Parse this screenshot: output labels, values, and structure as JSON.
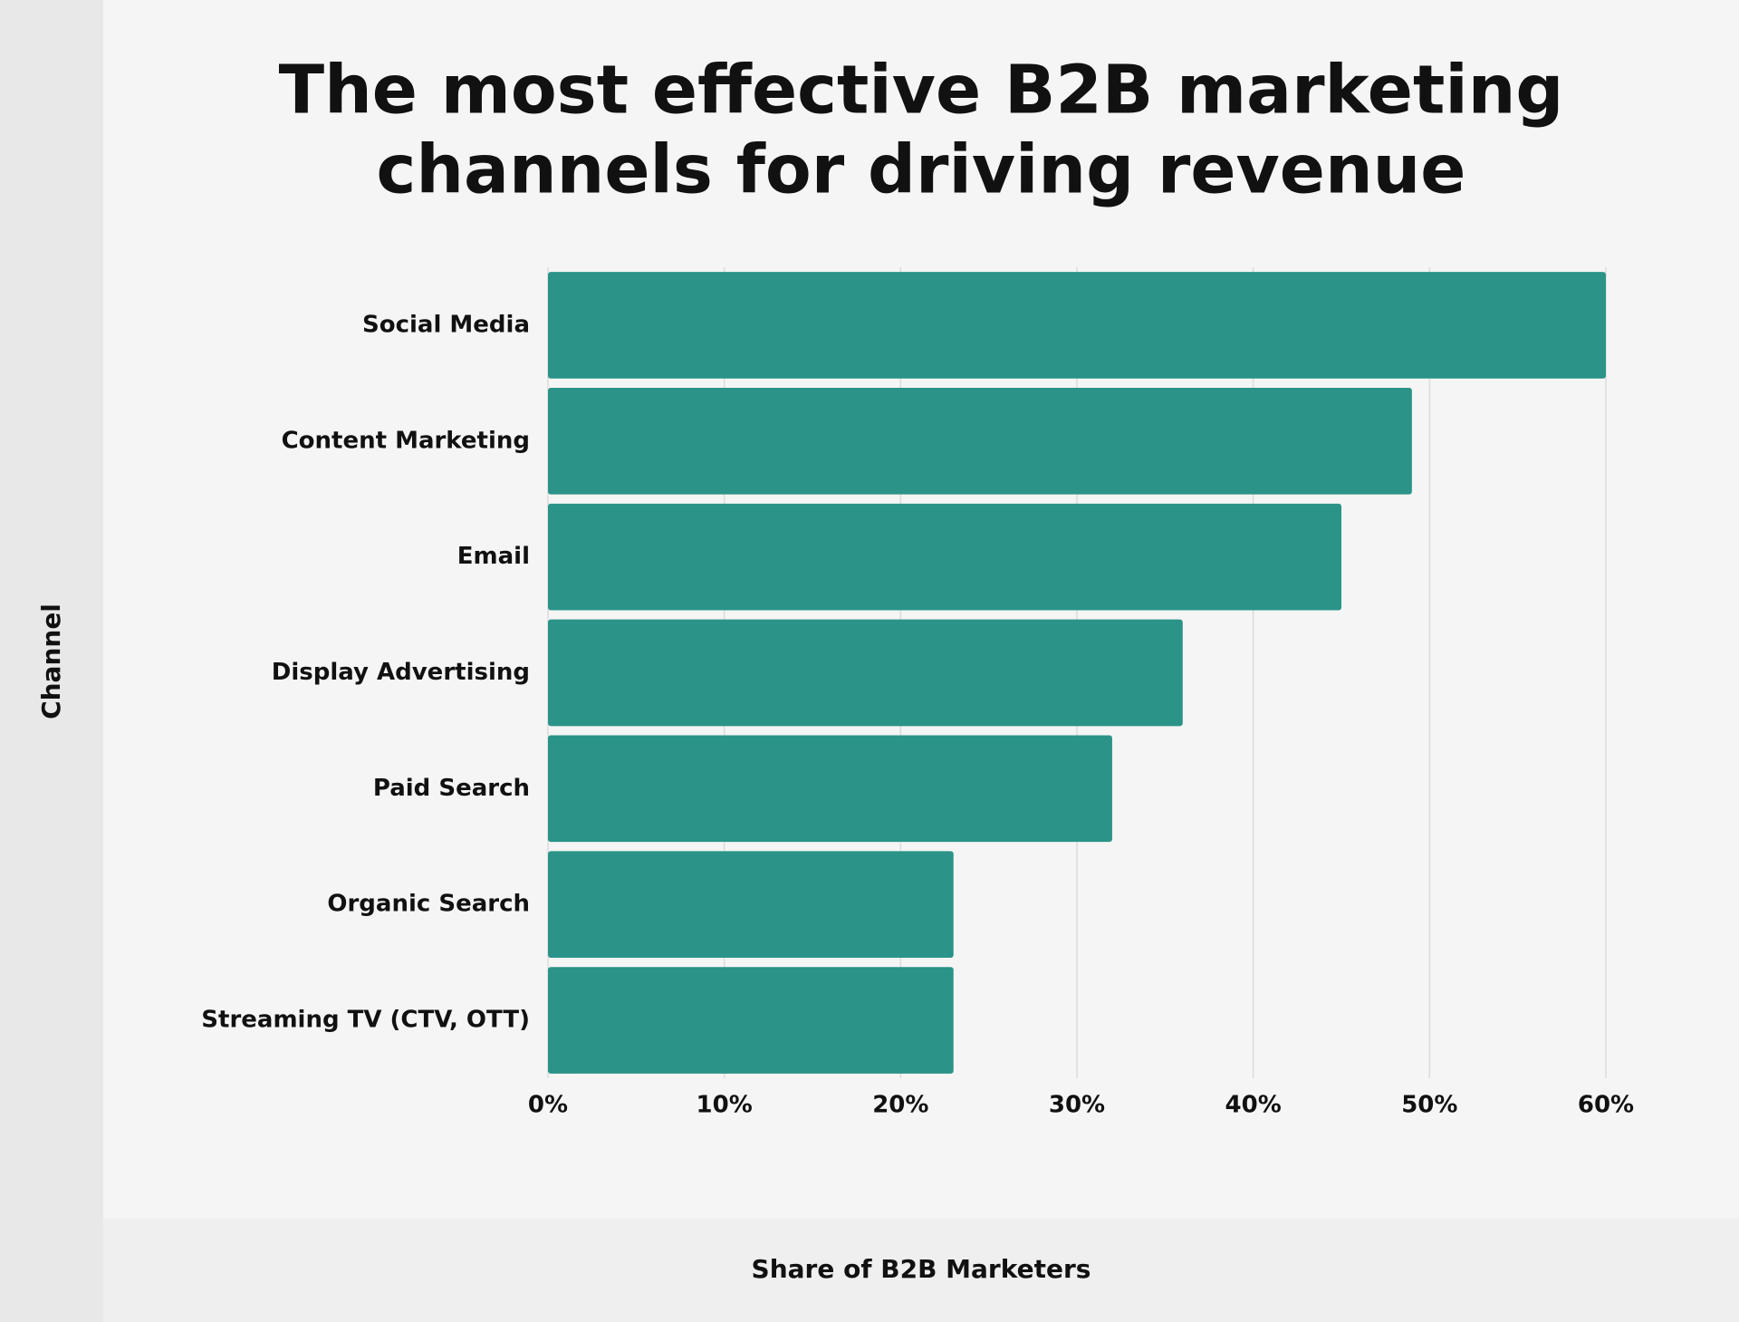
{
  "chart_data": {
    "type": "barh",
    "title": [
      "The most effective B2B marketing",
      "channels for driving revenue"
    ],
    "x_label": "Share of B2B Marketers",
    "y_label": "Channel",
    "categories": [
      "Social Media",
      "Content Marketing",
      "Email",
      "Display Advertising",
      "Paid Search",
      "Organic Search",
      "Streaming TV (CTV, OTT)"
    ],
    "values": [
      60,
      49,
      45,
      36,
      32,
      23,
      23
    ],
    "color": "#2b9387",
    "xlim": [
      0,
      60
    ],
    "xticks": [
      {
        "value": 0,
        "label": "0%"
      },
      {
        "value": 10,
        "label": "10%"
      },
      {
        "value": 20,
        "label": "20%"
      },
      {
        "value": 30,
        "label": "30%"
      },
      {
        "value": 40,
        "label": "40%"
      },
      {
        "value": 50,
        "label": "50%"
      },
      {
        "value": 60,
        "label": "60%"
      }
    ],
    "grid": true
  }
}
